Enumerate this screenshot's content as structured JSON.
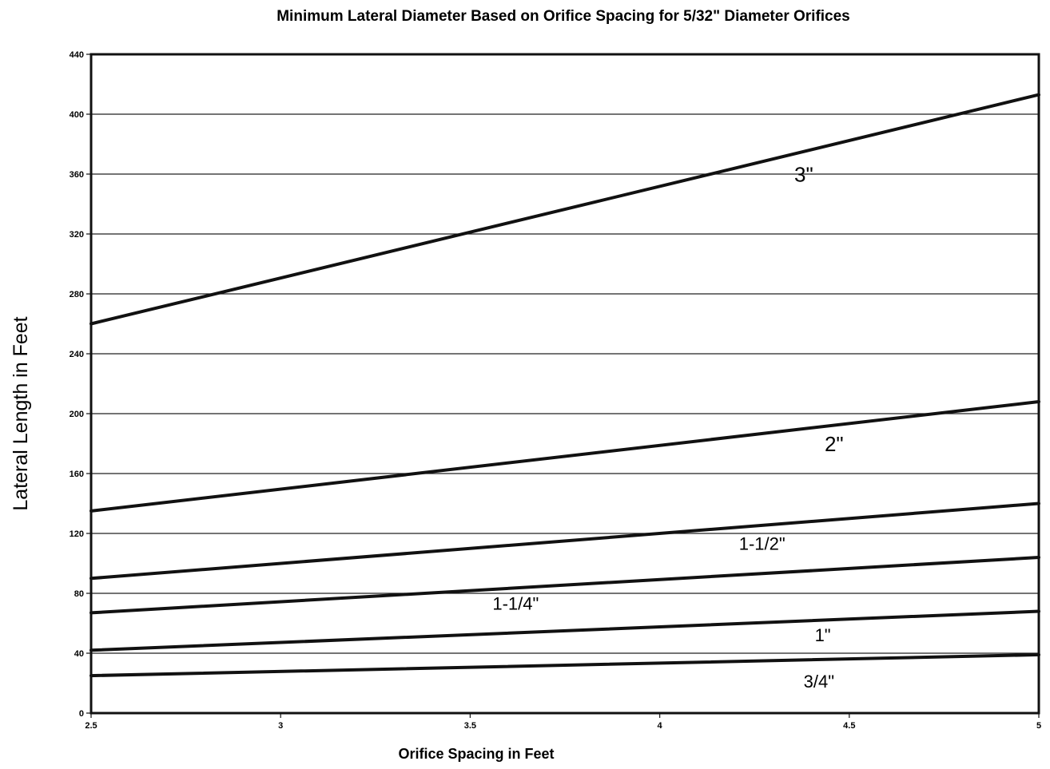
{
  "chart_data": {
    "type": "line",
    "title": "Minimum Lateral Diameter Based on Orifice Spacing for 5/32\" Diameter Orifices",
    "xlabel": "Orifice Spacing in Feet",
    "ylabel": "Lateral Length in Feet",
    "xlim": [
      2.5,
      5
    ],
    "ylim": [
      0,
      440
    ],
    "x_ticks": [
      2.5,
      3,
      3.5,
      4,
      4.5,
      5
    ],
    "x_tick_labels": [
      "2.5",
      "3",
      "3.5",
      "4",
      "4.5",
      "5"
    ],
    "y_ticks": [
      0,
      40,
      80,
      120,
      160,
      200,
      240,
      280,
      320,
      360,
      400,
      440
    ],
    "y_tick_labels": [
      "0",
      "40",
      "80",
      "120",
      "160",
      "200",
      "240",
      "280",
      "320",
      "360",
      "400",
      "440"
    ],
    "grid": "horizontal",
    "legend": "inline labels",
    "series": [
      {
        "name": "3\"",
        "x": [
          2.5,
          5
        ],
        "y": [
          260,
          413
        ]
      },
      {
        "name": "2\"",
        "x": [
          2.5,
          5
        ],
        "y": [
          135,
          208
        ]
      },
      {
        "name": "1-1/2\"",
        "x": [
          2.5,
          5
        ],
        "y": [
          90,
          140
        ]
      },
      {
        "name": "1-1/4\"",
        "x": [
          2.5,
          5
        ],
        "y": [
          67,
          104
        ]
      },
      {
        "name": "1\"",
        "x": [
          2.5,
          5
        ],
        "y": [
          42,
          68
        ]
      },
      {
        "name": "3/4\"",
        "x": [
          2.5,
          5
        ],
        "y": [
          25,
          39
        ]
      }
    ]
  },
  "colors": {
    "line": "#111111",
    "grid": "#222222",
    "background": "#ffffff"
  }
}
